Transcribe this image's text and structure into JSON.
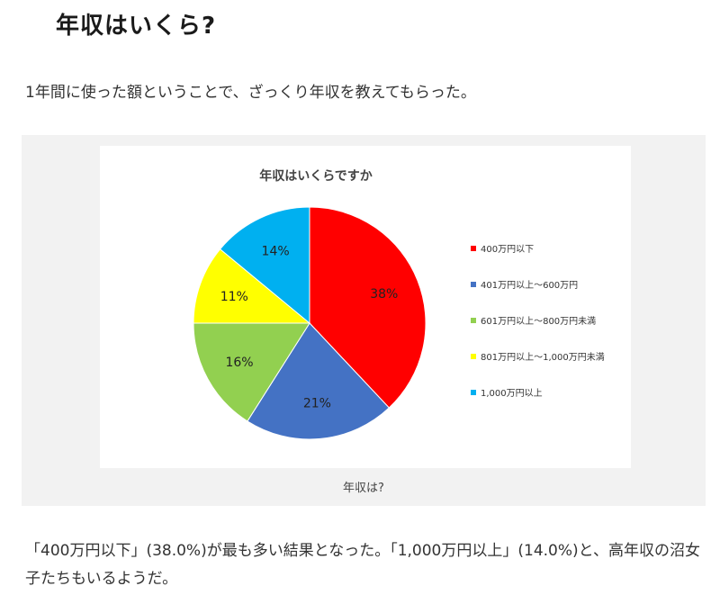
{
  "article": {
    "heading": "年収はいくら?",
    "intro": "1年間に使った額ということで、ざっくり年収を教えてもらった。",
    "caption": "年収は?",
    "summary": "「400万円以下」(38.0%)が最も多い結果となった。「1,000万円以上」(14.0%)と、高年収の沼女子たちもいるようだ。"
  },
  "chart_data": {
    "type": "pie",
    "title": "年収はいくらですか",
    "legend_position": "right",
    "categories": [
      "400万円以下",
      "401万円以上～600万円",
      "601万円以上～800万円未満",
      "801万円以上～1,000万円未満",
      "1,000万円以上"
    ],
    "values": [
      38,
      21,
      16,
      11,
      14
    ],
    "data_labels": [
      "38%",
      "21%",
      "16%",
      "11%",
      "14%"
    ],
    "colors": [
      "#ff0000",
      "#4472c4",
      "#92d050",
      "#ffff00",
      "#00b0f0"
    ]
  }
}
